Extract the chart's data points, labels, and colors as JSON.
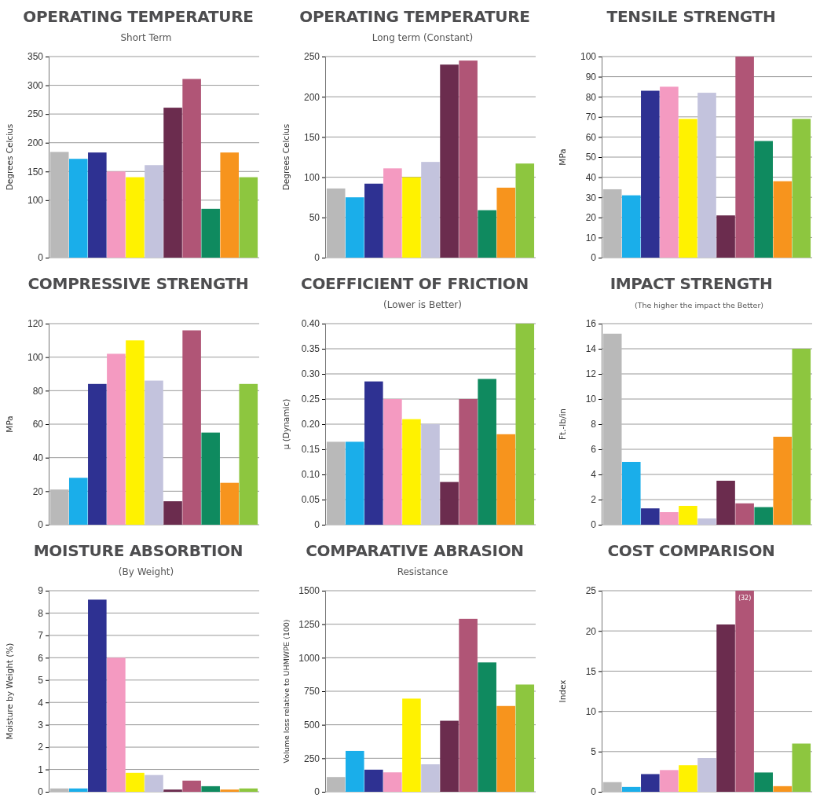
{
  "chart_data": [
    {
      "type": "bar",
      "title": "OPERATING TEMPERATURE",
      "subtitle": "Short Term",
      "ylabel": "Degrees Celcius",
      "categories": [
        null,
        null,
        null,
        null,
        null,
        null,
        null,
        null,
        null,
        null,
        null
      ],
      "colors": [
        "#b9b9b9",
        "#1aaeea",
        "#2e3192",
        "#f49ac1",
        "#fff200",
        "#c3c3dd",
        "#6b2c4e",
        "#b05576",
        "#0f8a5f",
        "#f7941d",
        "#8dc63f"
      ],
      "values": [
        184,
        172,
        183,
        150,
        140,
        161,
        261,
        311,
        85,
        183,
        140
      ],
      "ylim": [
        0,
        350
      ],
      "yticks": [
        0,
        100,
        150,
        200,
        250,
        300,
        350
      ],
      "grid": "y"
    },
    {
      "type": "bar",
      "title": "OPERATING TEMPERATURE",
      "subtitle": "Long term (Constant)",
      "ylabel": "Degrees Celcius",
      "categories": [
        null,
        null,
        null,
        null,
        null,
        null,
        null,
        null,
        null,
        null,
        null
      ],
      "colors": [
        "#b9b9b9",
        "#1aaeea",
        "#2e3192",
        "#f49ac1",
        "#fff200",
        "#c3c3dd",
        "#6b2c4e",
        "#b05576",
        "#0f8a5f",
        "#f7941d",
        "#8dc63f"
      ],
      "values": [
        86,
        75,
        92,
        111,
        100,
        119,
        240,
        245,
        59,
        87,
        117
      ],
      "ylim": [
        0,
        250
      ],
      "yticks": [
        0,
        50,
        100,
        150,
        200,
        250
      ],
      "grid": "y"
    },
    {
      "type": "bar",
      "title": "TENSILE STRENGTH",
      "ylabel": "MPa",
      "categories": [
        null,
        null,
        null,
        null,
        null,
        null,
        null,
        null,
        null,
        null,
        null
      ],
      "colors": [
        "#b9b9b9",
        "#1aaeea",
        "#2e3192",
        "#f49ac1",
        "#fff200",
        "#c3c3dd",
        "#6b2c4e",
        "#b05576",
        "#0f8a5f",
        "#f7941d",
        "#8dc63f"
      ],
      "values": [
        34,
        31,
        83,
        85,
        69,
        82,
        21,
        100,
        58,
        38,
        69
      ],
      "ylim": [
        0,
        100
      ],
      "yticks": [
        0,
        10,
        20,
        30,
        40,
        50,
        60,
        70,
        80,
        90,
        100
      ],
      "grid": "y"
    },
    {
      "type": "bar",
      "title": "COMPRESSIVE STRENGTH",
      "ylabel": "MPa",
      "categories": [
        null,
        null,
        null,
        null,
        null,
        null,
        null,
        null,
        null,
        null,
        null
      ],
      "colors": [
        "#b9b9b9",
        "#1aaeea",
        "#2e3192",
        "#f49ac1",
        "#fff200",
        "#c3c3dd",
        "#6b2c4e",
        "#b05576",
        "#0f8a5f",
        "#f7941d",
        "#8dc63f"
      ],
      "values": [
        21,
        28,
        84,
        102,
        110,
        86,
        14,
        116,
        55,
        25,
        84
      ],
      "ylim": [
        0,
        120
      ],
      "yticks": [
        0,
        20,
        40,
        60,
        80,
        100,
        120
      ],
      "grid": "y"
    },
    {
      "type": "bar",
      "title": "COEFFICIENT OF FRICTION",
      "subtitle": "(Lower is Better)",
      "ylabel": "μ (Dynamic)",
      "categories": [
        null,
        null,
        null,
        null,
        null,
        null,
        null,
        null,
        null,
        null,
        null
      ],
      "colors": [
        "#b9b9b9",
        "#1aaeea",
        "#2e3192",
        "#f49ac1",
        "#fff200",
        "#c3c3dd",
        "#6b2c4e",
        "#b05576",
        "#0f8a5f",
        "#f7941d",
        "#8dc63f"
      ],
      "values": [
        0.165,
        0.165,
        0.285,
        0.25,
        0.21,
        0.2,
        0.085,
        0.25,
        0.29,
        0.18,
        0.4
      ],
      "ylim": [
        0,
        0.4
      ],
      "yticks": [
        0,
        {
          "value": 0.05,
          "label": "0.05"
        },
        {
          "value": 0.1,
          "label": "0.10"
        },
        {
          "value": 0.15,
          "label": "0.15"
        },
        {
          "value": 0.2,
          "label": "0.20"
        },
        {
          "value": 0.25,
          "label": "0.25"
        },
        {
          "value": 0.3,
          "label": "0.30"
        },
        {
          "value": 0.35,
          "label": "0.35"
        },
        {
          "value": 0.4,
          "label": "0.40"
        }
      ],
      "grid": "y"
    },
    {
      "type": "bar",
      "title": "IMPACT STRENGTH",
      "subtitle": "(The higher the impact the Better)",
      "ylabel": "Ft.-lb/in",
      "categories": [
        null,
        null,
        null,
        null,
        null,
        null,
        null,
        null,
        null,
        null,
        null
      ],
      "colors": [
        "#b9b9b9",
        "#1aaeea",
        "#2e3192",
        "#f49ac1",
        "#fff200",
        "#c3c3dd",
        "#6b2c4e",
        "#b05576",
        "#0f8a5f",
        "#f7941d",
        "#8dc63f"
      ],
      "values": [
        15.2,
        5,
        1.3,
        1,
        1.5,
        0.5,
        3.5,
        1.7,
        1.4,
        7,
        14
      ],
      "ylim": [
        0,
        16
      ],
      "yticks": [
        0,
        2,
        4,
        6,
        8,
        10,
        12,
        14,
        16
      ],
      "grid": "y"
    },
    {
      "type": "bar",
      "title": "MOISTURE ABSORBTION",
      "subtitle": "(By Weight)",
      "ylabel": "Moisture by Weight (%)",
      "categories": [
        null,
        null,
        null,
        null,
        null,
        null,
        null,
        null,
        null,
        null,
        null
      ],
      "colors": [
        "#b9b9b9",
        "#1aaeea",
        "#2e3192",
        "#f49ac1",
        "#fff200",
        "#c3c3dd",
        "#6b2c4e",
        "#b05576",
        "#0f8a5f",
        "#f7941d",
        "#8dc63f"
      ],
      "values": [
        0.15,
        0.15,
        8.6,
        6,
        0.85,
        0.75,
        0.1,
        0.5,
        0.25,
        0.1,
        0.15
      ],
      "ylim": [
        0,
        9
      ],
      "yticks": [
        0,
        1,
        2,
        3,
        4,
        5,
        6,
        7,
        8,
        9
      ],
      "grid": "y"
    },
    {
      "type": "bar",
      "title": "COMPARATIVE ABRASION",
      "subtitle": "Resistance",
      "ylabel": "Volume loss relative to UHMWPE (100)",
      "categories": [
        null,
        null,
        null,
        null,
        null,
        null,
        null,
        null,
        null,
        null,
        null
      ],
      "colors": [
        "#b9b9b9",
        "#1aaeea",
        "#2e3192",
        "#f49ac1",
        "#fff200",
        "#c3c3dd",
        "#6b2c4e",
        "#b05576",
        "#0f8a5f",
        "#f7941d",
        "#8dc63f"
      ],
      "values": [
        110,
        305,
        165,
        145,
        695,
        205,
        530,
        1290,
        965,
        640,
        800
      ],
      "ylim": [
        0,
        1500
      ],
      "yticks": [
        0,
        250,
        500,
        750,
        1000,
        1250,
        1500
      ],
      "grid": "y"
    },
    {
      "type": "bar",
      "title": "COST COMPARISON",
      "ylabel": "Index",
      "categories": [
        null,
        null,
        null,
        null,
        null,
        null,
        null,
        null,
        null,
        null,
        null
      ],
      "colors": [
        "#b9b9b9",
        "#1aaeea",
        "#2e3192",
        "#f49ac1",
        "#fff200",
        "#c3c3dd",
        "#6b2c4e",
        "#b05576",
        "#0f8a5f",
        "#f7941d",
        "#8dc63f"
      ],
      "values": [
        1.2,
        0.6,
        2.2,
        2.7,
        3.3,
        4.2,
        20.8,
        25,
        2.4,
        0.7,
        6
      ],
      "annotations": [
        {
          "text": "(32)",
          "y": 25
        }
      ],
      "ylim": [
        0,
        25
      ],
      "yticks": [
        0,
        5,
        10,
        15,
        20,
        25
      ],
      "grid": "y"
    }
  ]
}
